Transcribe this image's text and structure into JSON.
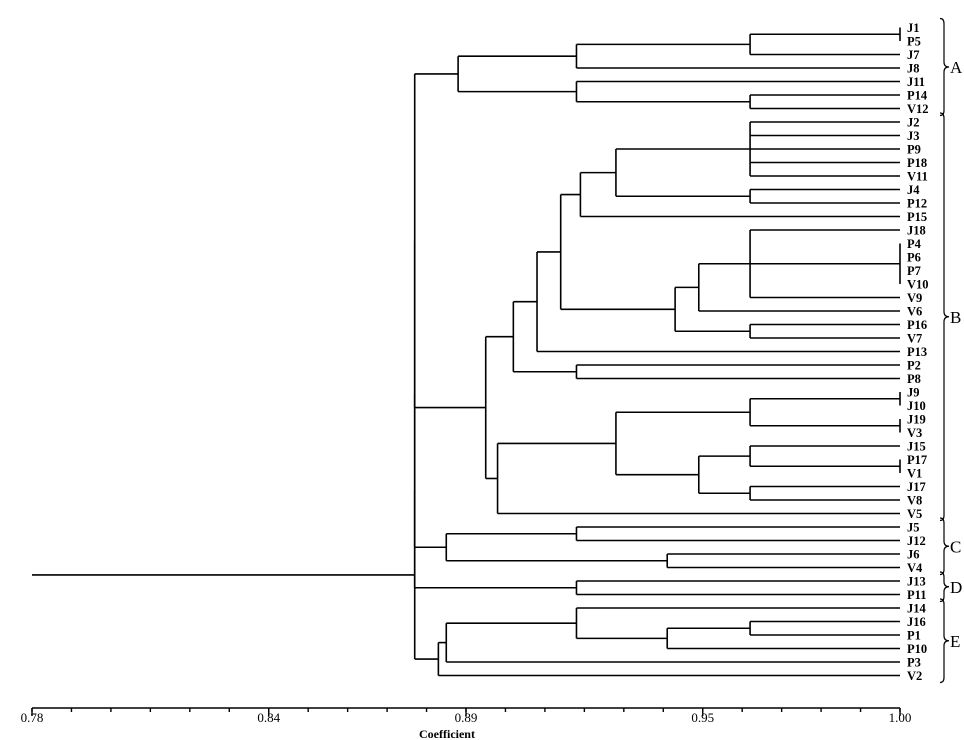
{
  "chart_data": {
    "type": "dendrogram",
    "xlabel": "Coefficient",
    "xlim": [
      0.78,
      1.0
    ],
    "x_ticks": [
      "0.78",
      "0.84",
      "0.89",
      "0.95",
      "1.00"
    ],
    "leaves": [
      "J1",
      "P5",
      "J7",
      "J8",
      "J11",
      "P14",
      "V12",
      "J2",
      "J3",
      "P9",
      "P18",
      "V11",
      "J4",
      "P12",
      "P15",
      "J18",
      "P4",
      "P6",
      "P7",
      "V10",
      "V9",
      "V6",
      "P16",
      "V7",
      "P13",
      "P2",
      "P8",
      "J9",
      "J10",
      "J19",
      "V3",
      "J15",
      "P17",
      "V1",
      "J17",
      "V8",
      "V5",
      "J5",
      "J12",
      "J6",
      "V4",
      "J13",
      "P11",
      "J14",
      "J16",
      "P1",
      "P10",
      "P3",
      "V2"
    ],
    "groups": [
      {
        "label": "A",
        "from": "J1",
        "to": "V12"
      },
      {
        "label": "B",
        "from": "J2",
        "to": "V5"
      },
      {
        "label": "C",
        "from": "J5",
        "to": "V4"
      },
      {
        "label": "D",
        "from": "J13",
        "to": "P11"
      },
      {
        "label": "E",
        "from": "J14",
        "to": "V2"
      }
    ],
    "tree": {
      "h": 0.876,
      "c": [
        {
          "h": 0.877,
          "c": [
            {
              "h": 0.877,
              "c": [
                {
                  "h": 0.877,
                  "c": [
                    {
                      "h": 0.877,
                      "c": [
                        {
                          "h": 0.877,
                          "c": [
                            {
                              "h": 0.888,
                              "c": [
                                {
                                  "h": 0.918,
                                  "c": [
                                    {
                                      "h": 0.962,
                                      "c": [
                                        {
                                          "h": 1.0,
                                          "c": [
                                            "J1",
                                            "P5"
                                          ]
                                        },
                                        "J7"
                                      ]
                                    },
                                    "J8"
                                  ]
                                },
                                {
                                  "h": 0.918,
                                  "c": [
                                    "J11",
                                    {
                                      "h": 0.962,
                                      "c": [
                                        "P14",
                                        "V12"
                                      ]
                                    }
                                  ]
                                }
                              ]
                            },
                            {
                              "h": 0.89,
                              "c": [
                                {
                                  "h": 0.895,
                                  "c": [
                                    {
                                      "h": 0.902,
                                      "c": [
                                        {
                                          "h": 0.908,
                                          "c": [
                                            {
                                              "h": 0.914,
                                              "c": [
                                                {
                                                  "h": 0.919,
                                                  "c": [
                                                    {
                                                      "h": 0.928,
                                                      "c": [
                                                        {
                                                          "h": 0.962,
                                                          "c": [
                                                            "J2",
                                                            "J3",
                                                            "P9",
                                                            "P18",
                                                            "V11"
                                                          ]
                                                        },
                                                        {
                                                          "h": 0.962,
                                                          "c": [
                                                            "J4",
                                                            "P12"
                                                          ]
                                                        }
                                                      ]
                                                    },
                                                    "P15"
                                                  ]
                                                },
                                                {
                                                  "h": 0.943,
                                                  "c": [
                                                    {
                                                      "h": 0.949,
                                                      "c": [
                                                        {
                                                          "h": 0.962,
                                                          "c": [
                                                            "J18",
                                                            {
                                                              "h": 1.0,
                                                              "c": [
                                                                "P4",
                                                                "P6",
                                                                "P7",
                                                                "V10"
                                                              ]
                                                            },
                                                            "V9"
                                                          ]
                                                        },
                                                        "V6"
                                                      ]
                                                    },
                                                    {
                                                      "h": 0.962,
                                                      "c": [
                                                        "P16",
                                                        "V7"
                                                      ]
                                                    }
                                                  ]
                                                }
                                              ]
                                            },
                                            "P13"
                                          ]
                                        },
                                        {
                                          "h": 0.918,
                                          "c": [
                                            "P2",
                                            "P8"
                                          ]
                                        }
                                      ]
                                    },
                                    {
                                      "h": 0.898,
                                      "c": [
                                        {
                                          "h": 0.928,
                                          "c": [
                                            {
                                              "h": 0.962,
                                              "c": [
                                                {
                                                  "h": 1.0,
                                                  "c": [
                                                    "J9",
                                                    "J10"
                                                  ]
                                                },
                                                {
                                                  "h": 1.0,
                                                  "c": [
                                                    "J19",
                                                    "V3"
                                                  ]
                                                }
                                              ]
                                            },
                                            {
                                              "h": 0.949,
                                              "c": [
                                                {
                                                  "h": 0.962,
                                                  "c": [
                                                    "J15",
                                                    {
                                                      "h": 1.0,
                                                      "c": [
                                                        "P17",
                                                        "V1"
                                                      ]
                                                    }
                                                  ]
                                                },
                                                {
                                                  "h": 0.962,
                                                  "c": [
                                                    "J17",
                                                    "V8"
                                                  ]
                                                }
                                              ]
                                            }
                                          ]
                                        },
                                        "V5"
                                      ]
                                    }
                                  ]
                                }
                              ]
                            }
                          ]
                        },
                        {
                          "h": 0.885,
                          "c": [
                            {
                              "h": 0.918,
                              "c": [
                                "J5",
                                "J12"
                              ]
                            },
                            {
                              "h": 0.941,
                              "c": [
                                "J6",
                                "V4"
                              ]
                            }
                          ]
                        }
                      ]
                    },
                    {
                      "h": 0.918,
                      "c": [
                        "J13",
                        "P11"
                      ]
                    }
                  ]
                },
                {
                  "h": 0.883,
                  "c": [
                    {
                      "h": 0.885,
                      "c": [
                        {
                          "h": 0.918,
                          "c": [
                            "J14",
                            {
                              "h": 0.941,
                              "c": [
                                {
                                  "h": 0.962,
                                  "c": [
                                    "J16",
                                    "P1"
                                  ]
                                },
                                "P10"
                              ]
                            }
                          ]
                        },
                        "P3"
                      ]
                    },
                    "V2"
                  ]
                }
              ]
            }
          ]
        },
        {
          "h": 0.78,
          "c": []
        }
      ]
    }
  }
}
